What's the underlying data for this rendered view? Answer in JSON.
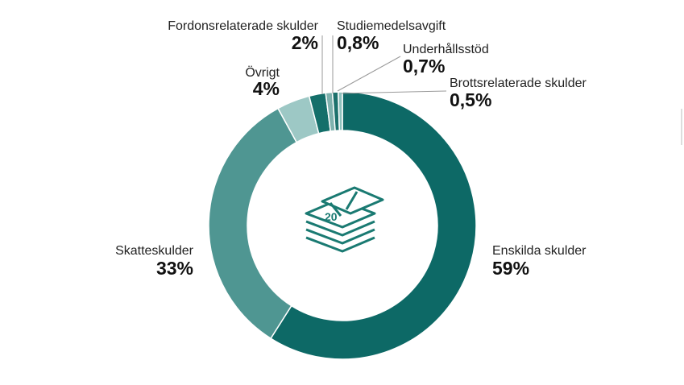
{
  "chart_data": {
    "type": "donut",
    "categories": [
      "Enskilda skulder",
      "Skatteskulder",
      "Övrigt",
      "Fordonsrelaterade skulder",
      "Studiemedelsavgift",
      "Underhållsstöd",
      "Brottsrelaterade skulder"
    ],
    "values": [
      59,
      33,
      4,
      2,
      0.8,
      0.7,
      0.5
    ],
    "value_labels": [
      "59%",
      "33%",
      "4%",
      "2%",
      "0,8%",
      "0,7%",
      "0,5%"
    ],
    "colors": [
      "#0d6966",
      "#4f9692",
      "#9dc8c5",
      "#146f6a",
      "#7fb2ae",
      "#1c716c",
      "#8ec1bd"
    ]
  }
}
